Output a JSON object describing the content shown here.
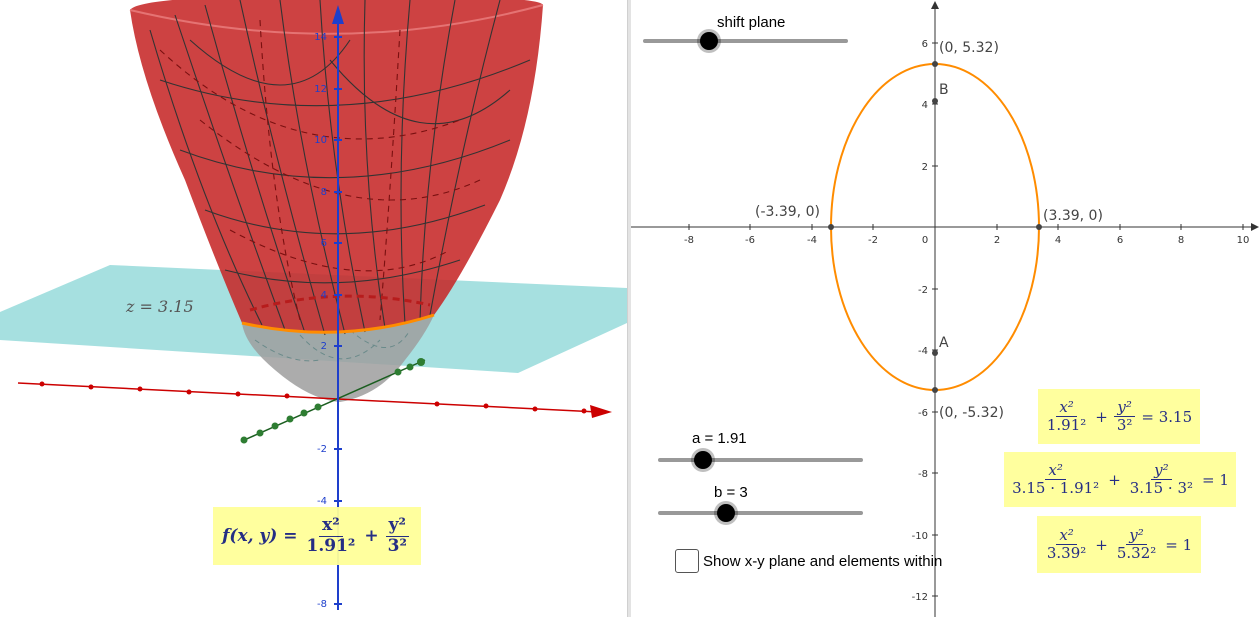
{
  "view3d": {
    "plane_label": "z = 3.15",
    "z_ticks": [
      "14",
      "12",
      "10",
      "8",
      "6",
      "4",
      "2",
      "-2",
      "-4",
      "-8"
    ],
    "function_label": "f(x, y) =",
    "function_a_den": "1.91²",
    "function_b_den": "3²",
    "colors": {
      "surface": "#c62828",
      "plane": "#a6e0e0",
      "ellipse": "#ff8c00",
      "x_axis": "#cc0000",
      "y_axis": "#1b5e20",
      "z_axis": "#1e3fcc"
    }
  },
  "view2d": {
    "x_ticks": [
      "-8",
      "-6",
      "-4",
      "-2",
      "0",
      "2",
      "4",
      "6",
      "8",
      "10"
    ],
    "y_ticks": [
      "6",
      "4",
      "2",
      "-2",
      "-4",
      "-6",
      "-8",
      "-10",
      "-12"
    ],
    "points": {
      "top": "(0, 5.32)",
      "bottom": "(0, -5.32)",
      "left": "(-3.39, 0)",
      "right": "(3.39, 0)",
      "B": "B",
      "A": "A"
    }
  },
  "sliders": {
    "shift_plane": {
      "label": "shift plane",
      "value": 0.32
    },
    "a": {
      "label": "a = 1.91",
      "value": 0.22
    },
    "b": {
      "label": "b = 3",
      "value": 0.33
    }
  },
  "equations": {
    "eq1": {
      "x_den": "1.91²",
      "y_den": "3²",
      "rhs": "= 3.15"
    },
    "eq2": {
      "x_den": "3.15 · 1.91²",
      "y_den": "3.15 · 3²",
      "rhs": "= 1"
    },
    "eq3": {
      "x_den": "3.39²",
      "y_den": "5.32²",
      "rhs": "= 1"
    },
    "x_num": "x²",
    "y_num": "y²"
  },
  "checkbox": {
    "label": "Show x-y plane and elements within",
    "checked": false
  }
}
